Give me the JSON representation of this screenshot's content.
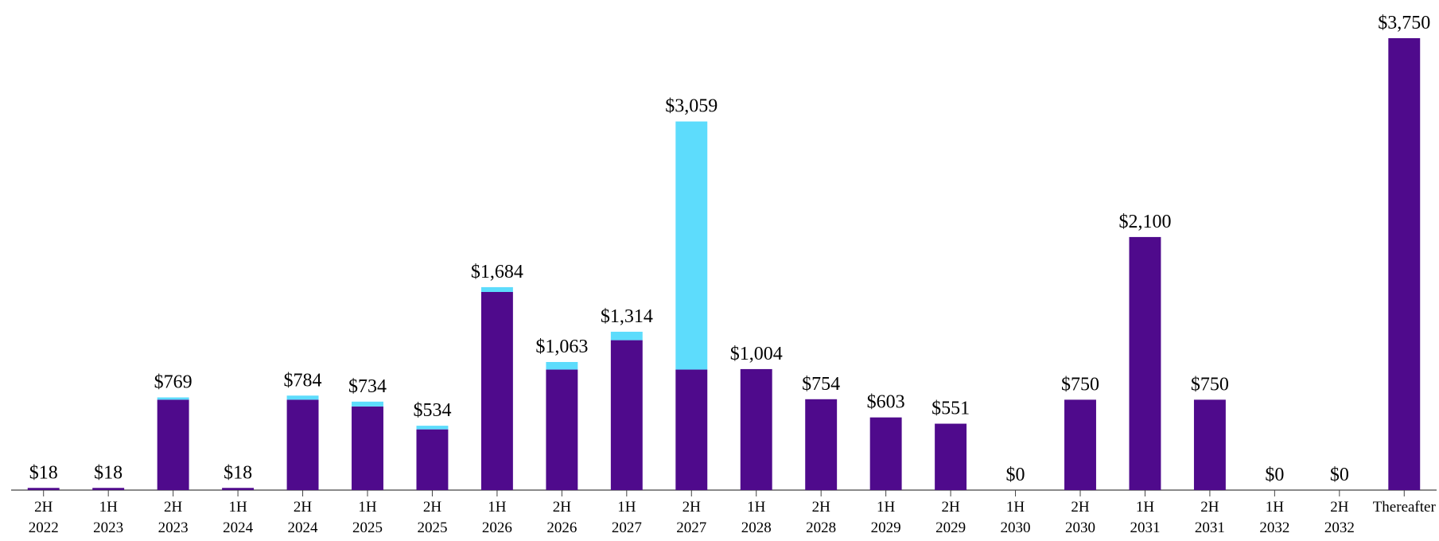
{
  "chart_data": {
    "type": "stacked_bar",
    "categories": [
      [
        "2H",
        "2022"
      ],
      [
        "1H",
        "2023"
      ],
      [
        "2H",
        "2023"
      ],
      [
        "1H",
        "2024"
      ],
      [
        "2H",
        "2024"
      ],
      [
        "1H",
        "2025"
      ],
      [
        "2H",
        "2025"
      ],
      [
        "1H",
        "2026"
      ],
      [
        "2H",
        "2026"
      ],
      [
        "1H",
        "2027"
      ],
      [
        "2H",
        "2027"
      ],
      [
        "1H",
        "2028"
      ],
      [
        "2H",
        "2028"
      ],
      [
        "1H",
        "2029"
      ],
      [
        "2H",
        "2029"
      ],
      [
        "1H",
        "2030"
      ],
      [
        "2H",
        "2030"
      ],
      [
        "1H",
        "2031"
      ],
      [
        "2H",
        "2031"
      ],
      [
        "1H",
        "2032"
      ],
      [
        "2H",
        "2032"
      ],
      [
        "Thereafter"
      ]
    ],
    "series": [
      {
        "color": "#4f0a8c",
        "values": [
          18,
          18,
          750,
          18,
          750,
          694,
          504,
          1644,
          1000,
          1244,
          1000,
          1004,
          754,
          603,
          551,
          0,
          750,
          2100,
          750,
          0,
          0,
          3750
        ]
      },
      {
        "color": "#5ddcfc",
        "values": [
          0,
          0,
          19,
          0,
          34,
          40,
          30,
          40,
          63,
          70,
          2059,
          0,
          0,
          0,
          0,
          0,
          0,
          0,
          0,
          0,
          0,
          0
        ]
      }
    ],
    "totals": [
      18,
      18,
      769,
      18,
      784,
      734,
      534,
      1684,
      1063,
      1314,
      3059,
      1004,
      754,
      603,
      551,
      0,
      750,
      2100,
      750,
      0,
      0,
      3750
    ],
    "total_labels": [
      "$18",
      "$18",
      "$769",
      "$18",
      "$784",
      "$734",
      "$534",
      "$1,684",
      "$1,063",
      "$1,314",
      "$3,059",
      "$1,004",
      "$754",
      "$603",
      "$551",
      "$0",
      "$750",
      "$2,100",
      "$750",
      "$0",
      "$0",
      "$3,750"
    ],
    "ylim": [
      0,
      3750
    ]
  }
}
